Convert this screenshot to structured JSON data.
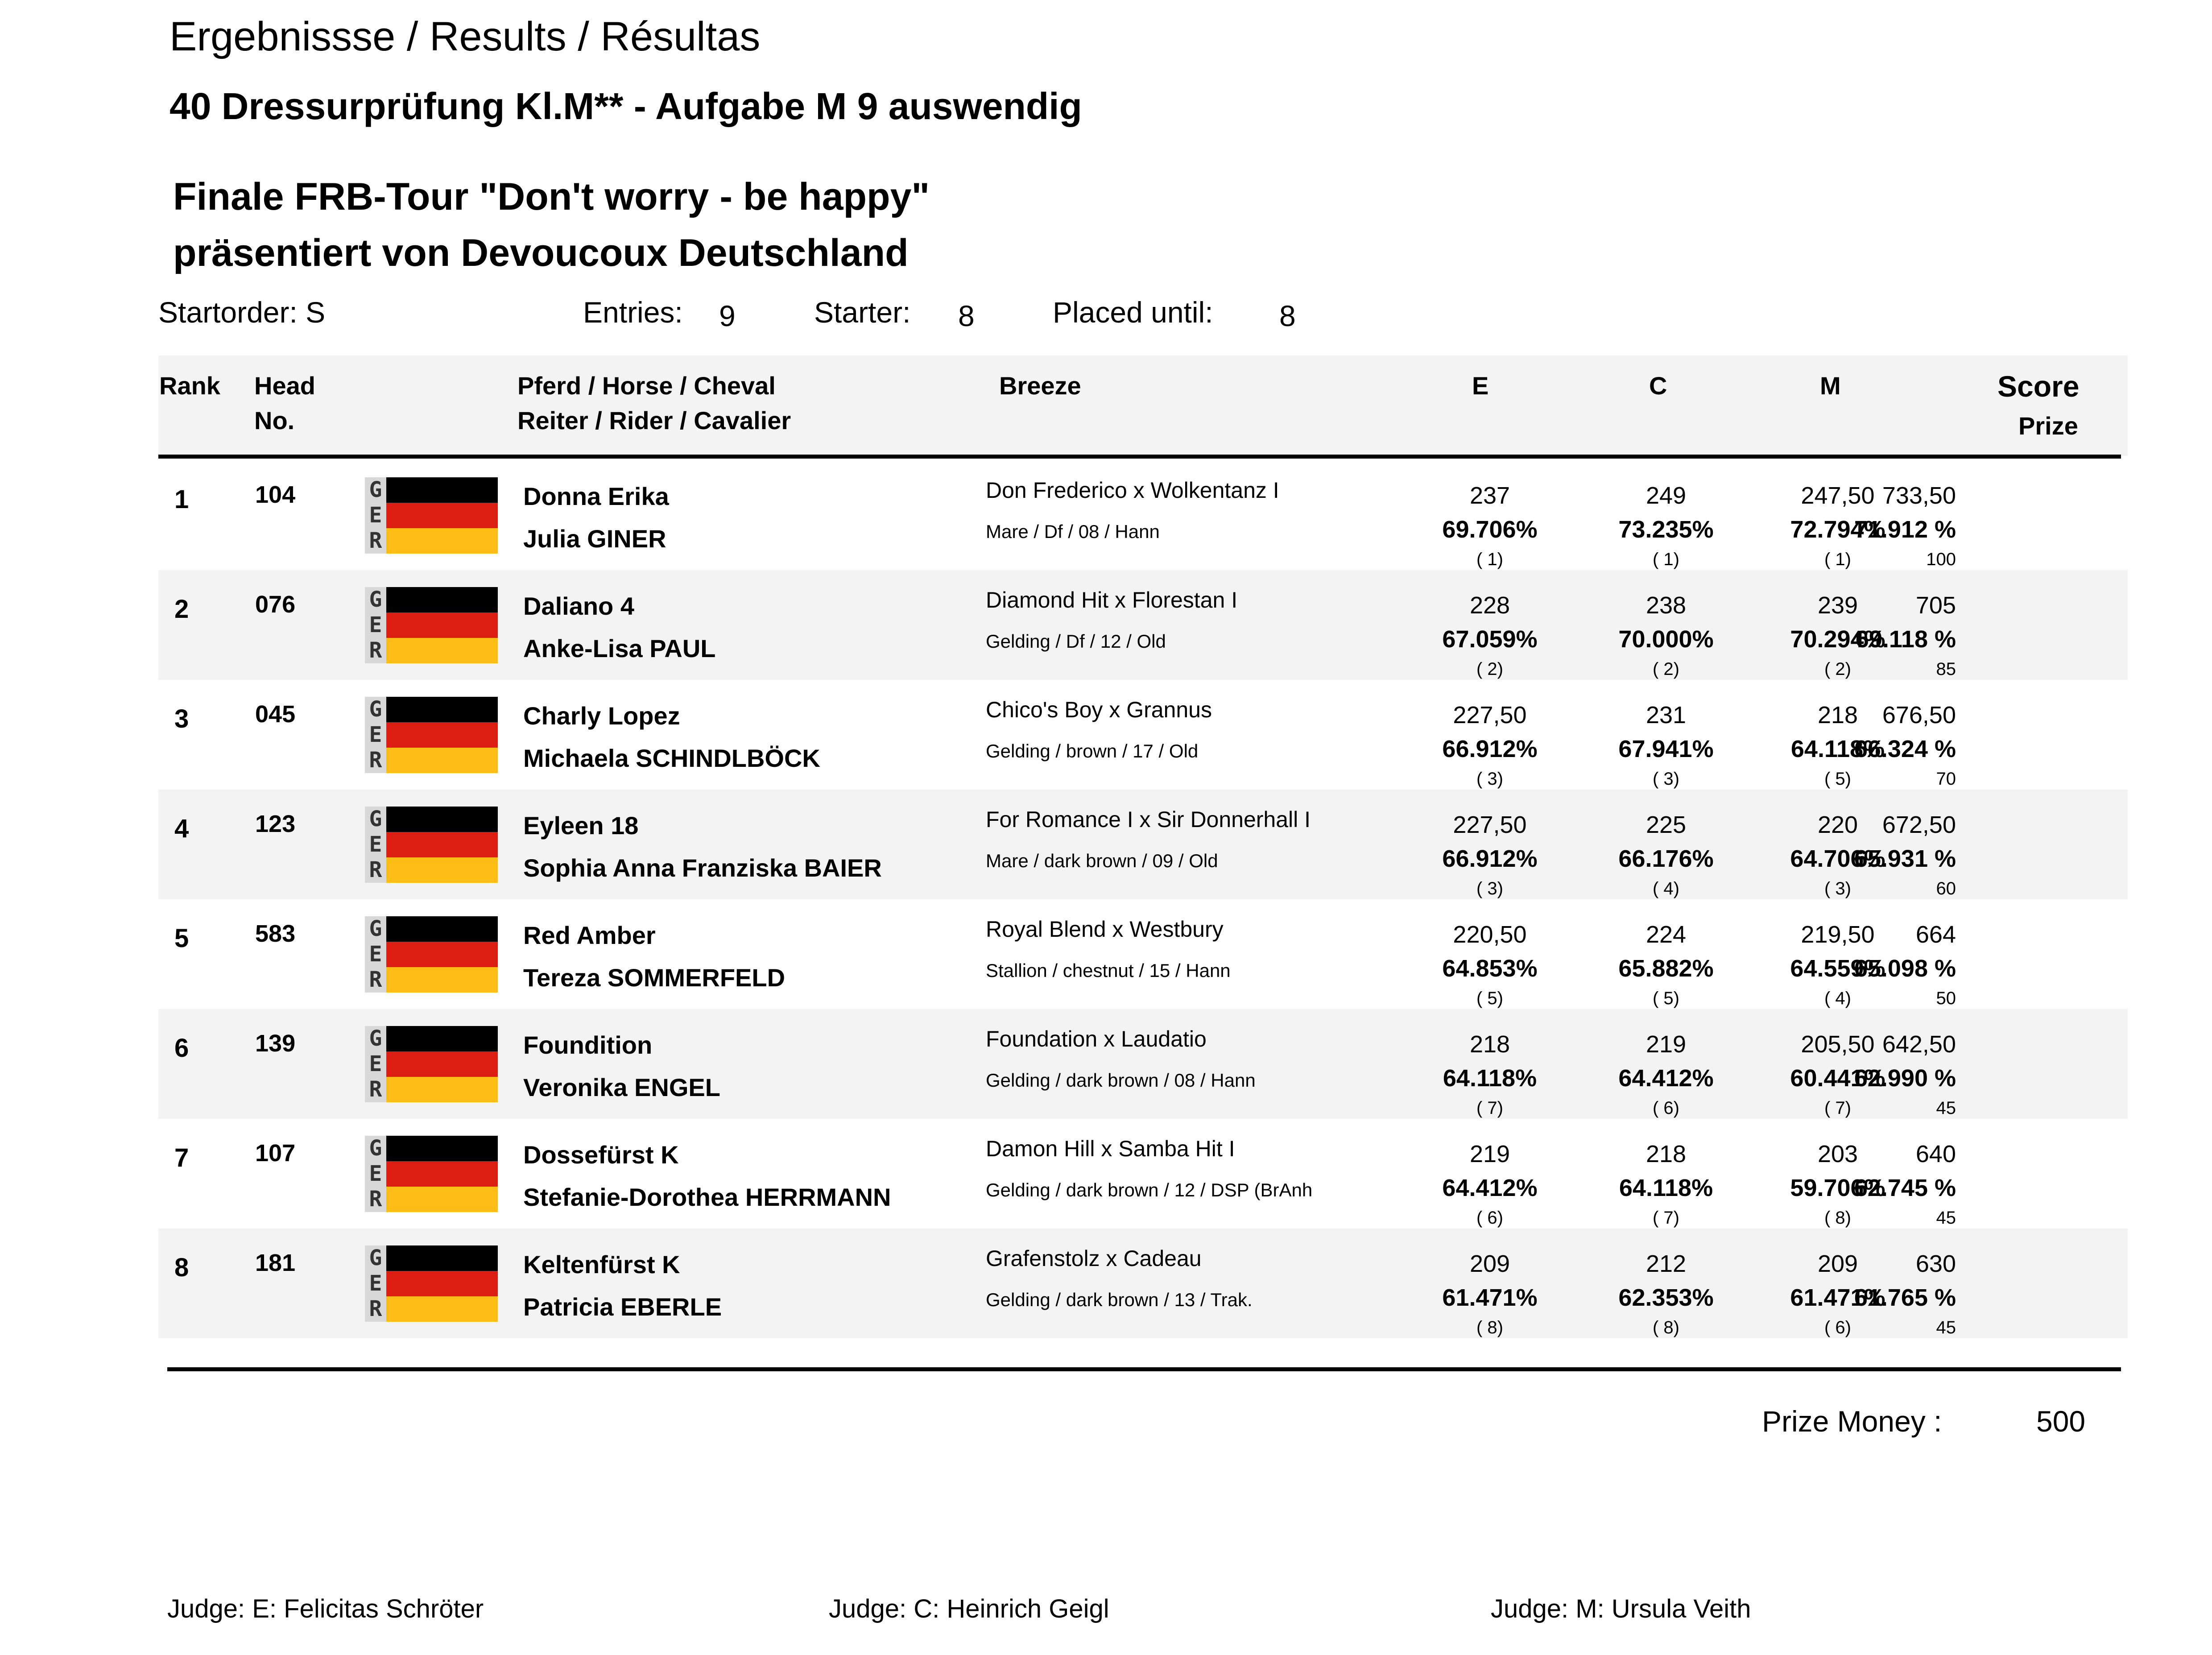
{
  "header": {
    "title": "Ergebnissse / Results / Résultas",
    "competition": "40 Dressurprüfung Kl.M** - Aufgabe M 9 auswendig",
    "subtitle_line1": "Finale FRB-Tour \"Don't worry - be happy\"",
    "subtitle_line2": "präsentiert von Devoucoux Deutschland"
  },
  "info": {
    "startorder": "Startorder: S",
    "entries_label": "Entries:",
    "entries": "9",
    "starter_label": "Starter:",
    "starter": "8",
    "placed_label": "Placed until:",
    "placed": "8"
  },
  "columns": {
    "rank": "Rank",
    "head": "Head",
    "head_no": "No.",
    "horse": "Pferd  / Horse / Cheval",
    "rider": "Reiter / Rider / Cavalier",
    "breeze": "Breeze",
    "e": "E",
    "c": "C",
    "m": "M",
    "score": "Score",
    "prize": "Prize"
  },
  "rows": [
    {
      "rank": "1",
      "head": "104",
      "nation": [
        "G",
        "E",
        "R"
      ],
      "horse": "Donna Erika",
      "rider": "Julia GINER",
      "breeding": "Don Frederico x Wolkentanz I",
      "details": "Mare / Df / 08 / Hann",
      "e": {
        "pts": "237",
        "pct": "69.706%",
        "plc": "(  1)"
      },
      "c": {
        "pts": "249",
        "pct": "73.235%",
        "plc": "(  1)"
      },
      "m": {
        "pts": "247,50",
        "pct": "72.794%",
        "plc": "(  1)"
      },
      "total": "733,50",
      "score": "71.912 %",
      "prize": "100"
    },
    {
      "rank": "2",
      "head": "076",
      "nation": [
        "G",
        "E",
        "R"
      ],
      "horse": "Daliano 4",
      "rider": "Anke-Lisa PAUL",
      "breeding": "Diamond Hit x Florestan I",
      "details": "Gelding / Df / 12 / Old",
      "e": {
        "pts": "228",
        "pct": "67.059%",
        "plc": "(  2)"
      },
      "c": {
        "pts": "238",
        "pct": "70.000%",
        "plc": "(  2)"
      },
      "m": {
        "pts": "239",
        "pct": "70.294%",
        "plc": "(  2)"
      },
      "total": "705",
      "score": "69.118 %",
      "prize": "85"
    },
    {
      "rank": "3",
      "head": "045",
      "nation": [
        "G",
        "E",
        "R"
      ],
      "horse": "Charly Lopez",
      "rider": "Michaela SCHINDLBÖCK",
      "breeding": "Chico's Boy x Grannus",
      "details": "Gelding / brown / 17 / Old",
      "e": {
        "pts": "227,50",
        "pct": "66.912%",
        "plc": "(  3)"
      },
      "c": {
        "pts": "231",
        "pct": "67.941%",
        "plc": "(  3)"
      },
      "m": {
        "pts": "218",
        "pct": "64.118%",
        "plc": "(  5)"
      },
      "total": "676,50",
      "score": "66.324 %",
      "prize": "70"
    },
    {
      "rank": "4",
      "head": "123",
      "nation": [
        "G",
        "E",
        "R"
      ],
      "horse": "Eyleen 18",
      "rider": "Sophia Anna Franziska BAIER",
      "breeding": "For Romance I x Sir Donnerhall I",
      "details": "Mare / dark brown / 09 / Old",
      "e": {
        "pts": "227,50",
        "pct": "66.912%",
        "plc": "(  3)"
      },
      "c": {
        "pts": "225",
        "pct": "66.176%",
        "plc": "(  4)"
      },
      "m": {
        "pts": "220",
        "pct": "64.706%",
        "plc": "(  3)"
      },
      "total": "672,50",
      "score": "65.931 %",
      "prize": "60"
    },
    {
      "rank": "5",
      "head": "583",
      "nation": [
        "G",
        "E",
        "R"
      ],
      "horse": "Red Amber",
      "rider": "Tereza SOMMERFELD",
      "breeding": "Royal Blend x Westbury",
      "details": "Stallion / chestnut / 15 / Hann",
      "e": {
        "pts": "220,50",
        "pct": "64.853%",
        "plc": "(  5)"
      },
      "c": {
        "pts": "224",
        "pct": "65.882%",
        "plc": "(  5)"
      },
      "m": {
        "pts": "219,50",
        "pct": "64.559%",
        "plc": "(  4)"
      },
      "total": "664",
      "score": "65.098 %",
      "prize": "50"
    },
    {
      "rank": "6",
      "head": "139",
      "nation": [
        "G",
        "E",
        "R"
      ],
      "horse": "Foundition",
      "rider": "Veronika ENGEL",
      "breeding": "Foundation x Laudatio",
      "details": "Gelding / dark brown / 08 / Hann",
      "e": {
        "pts": "218",
        "pct": "64.118%",
        "plc": "(  7)"
      },
      "c": {
        "pts": "219",
        "pct": "64.412%",
        "plc": "(  6)"
      },
      "m": {
        "pts": "205,50",
        "pct": "60.441%",
        "plc": "(  7)"
      },
      "total": "642,50",
      "score": "62.990 %",
      "prize": "45"
    },
    {
      "rank": "7",
      "head": "107",
      "nation": [
        "G",
        "E",
        "R"
      ],
      "horse": "Dossefürst K",
      "rider": "Stefanie-Dorothea HERRMANN",
      "breeding": "Damon Hill x Samba Hit I",
      "details": "Gelding / dark brown / 12 / DSP (BrAnh",
      "e": {
        "pts": "219",
        "pct": "64.412%",
        "plc": "(  6)"
      },
      "c": {
        "pts": "218",
        "pct": "64.118%",
        "plc": "(  7)"
      },
      "m": {
        "pts": "203",
        "pct": "59.706%",
        "plc": "(  8)"
      },
      "total": "640",
      "score": "62.745 %",
      "prize": "45"
    },
    {
      "rank": "8",
      "head": "181",
      "nation": [
        "G",
        "E",
        "R"
      ],
      "horse": "Keltenfürst K",
      "rider": "Patricia EBERLE",
      "breeding": "Grafenstolz x Cadeau",
      "details": "Gelding / dark brown / 13 / Trak.",
      "e": {
        "pts": "209",
        "pct": "61.471%",
        "plc": "(  8)"
      },
      "c": {
        "pts": "212",
        "pct": "62.353%",
        "plc": "(  8)"
      },
      "m": {
        "pts": "209",
        "pct": "61.471%",
        "plc": "(  6)"
      },
      "total": "630",
      "score": "61.765 %",
      "prize": "45"
    }
  ],
  "prize_money": {
    "label": "Prize Money :",
    "value": "500"
  },
  "judges": {
    "e": "Judge: E: Felicitas Schröter",
    "c": "Judge: C: Heinrich Geigl",
    "m": "Judge: M: Ursula Veith"
  },
  "colors": {
    "flag_black": "#000000",
    "flag_red": "#dc1d11",
    "flag_gold": "#fbbd16",
    "row_shade": "#f3f3f3"
  }
}
